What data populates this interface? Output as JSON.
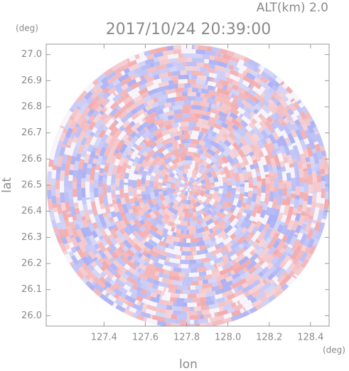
{
  "chart_data": {
    "type": "ppi",
    "title": "2017/10/24 20:39:00",
    "subtitle": "ALT(km)  2.0",
    "x_label": "lon",
    "y_label": "lat",
    "x_unit": "(deg)",
    "y_unit": "(deg)",
    "xlim": [
      127.12,
      128.49
    ],
    "ylim": [
      25.96,
      27.04
    ],
    "xticks": [
      127.4,
      127.6,
      127.8,
      {
        "value": 128.0,
        "label": "128.0"
      },
      128.2,
      128.4
    ],
    "yticks": [
      {
        "value": 26.0,
        "label": "26.0"
      },
      26.1,
      26.2,
      26.3,
      26.4,
      26.5,
      26.6,
      26.7,
      26.8,
      26.9,
      {
        "value": 27.0,
        "label": "27.0"
      }
    ]
  }
}
